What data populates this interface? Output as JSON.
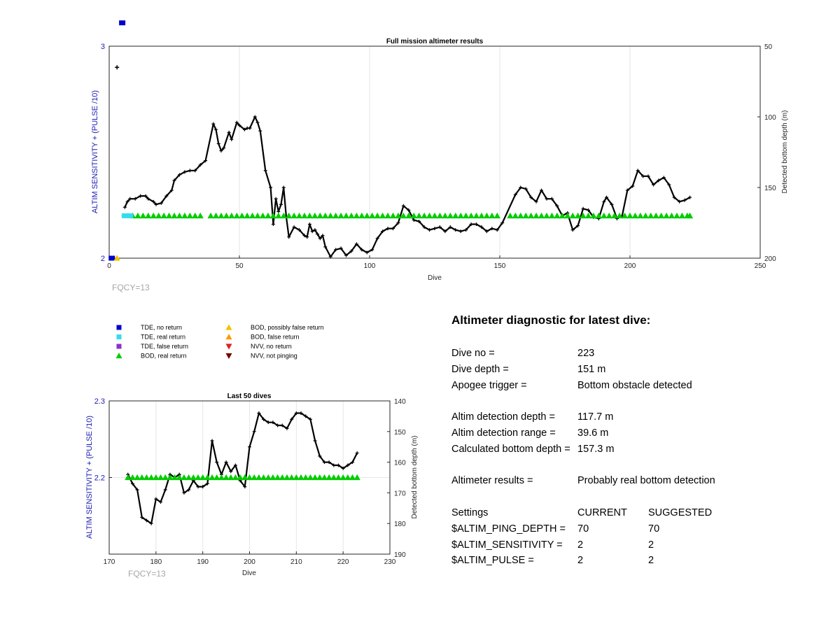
{
  "top_chart": {
    "title": "Full mission altimeter results",
    "xlabel": "Dive",
    "ylabel_left": "ALTIM SENSITIVITY + (PULSE /10)",
    "ylabel_right": "Detected bottom depth (m)",
    "xticks": [
      "0",
      "50",
      "100",
      "150",
      "200",
      "250"
    ],
    "yticks_left": [
      "2",
      "3"
    ],
    "yticks_right": [
      "50",
      "100",
      "150",
      "200"
    ],
    "fqcy": "FQCY=13"
  },
  "bottom_chart": {
    "title": "Last 50 dives",
    "xlabel": "Dive",
    "ylabel_left": "ALTIM SENSITIVITY + (PULSE /10)",
    "ylabel_right": "Detected bottom depth (m)",
    "xticks": [
      "170",
      "180",
      "190",
      "200",
      "210",
      "220",
      "230"
    ],
    "yticks_left": [
      "2.2",
      "2.3"
    ],
    "yticks_right": [
      "140",
      "150",
      "160",
      "170",
      "180",
      "190"
    ],
    "fqcy": "FQCY=13"
  },
  "legend": [
    {
      "label": "TDE, no return",
      "symbol": "square",
      "color": "#0000cc"
    },
    {
      "label": "TDE, real return",
      "symbol": "square",
      "color": "#33ddee"
    },
    {
      "label": "TDE, false return",
      "symbol": "square",
      "color": "#8833cc"
    },
    {
      "label": "BOD, real return",
      "symbol": "triangle-up",
      "color": "#00cc00"
    },
    {
      "label": "BOD, possibly false return",
      "symbol": "triangle-up",
      "color": "#f2c200"
    },
    {
      "label": "BOD, false return",
      "symbol": "triangle-up",
      "color": "#ff9900"
    },
    {
      "label": "NVV, no return",
      "symbol": "triangle-down",
      "color": "#dd2222"
    },
    {
      "label": "NVV, not pinging",
      "symbol": "triangle-down",
      "color": "#770000"
    }
  ],
  "diagnostic": {
    "heading": "Altimeter diagnostic for latest dive:",
    "dive_no_label": "Dive no =",
    "dive_no": "223",
    "dive_depth_label": "Dive depth =",
    "dive_depth": "151 m",
    "apogee_label": "Apogee trigger =",
    "apogee": "Bottom obstacle detected",
    "det_depth_label": "Altim detection depth =",
    "det_depth": "117.7 m",
    "det_range_label": "Altim detection range =",
    "det_range": "39.6 m",
    "calc_depth_label": "Calculated bottom depth =",
    "calc_depth": "157.3 m",
    "results_label": "Altimeter results =",
    "results": "Probably real bottom detection",
    "settings_label": "Settings",
    "current_label": "CURRENT",
    "suggested_label": "SUGGESTED",
    "ping_depth_label": "$ALTIM_PING_DEPTH =",
    "ping_depth_current": "70",
    "ping_depth_suggested": "70",
    "sensitivity_label": "$ALTIM_SENSITIVITY =",
    "sensitivity_current": "2",
    "sensitivity_suggested": "2",
    "pulse_label": "$ALTIM_PULSE =",
    "pulse_current": "2",
    "pulse_suggested": "2"
  },
  "chart_data": [
    {
      "type": "line",
      "title": "Full mission altimeter results",
      "xlabel": "Dive",
      "ylabel": "ALTIM SENSITIVITY + (PULSE /10)",
      "y2label": "Detected bottom depth (m)",
      "xlim": [
        0,
        250
      ],
      "ylim": [
        2,
        3
      ],
      "y2lim": [
        200,
        50
      ],
      "y2_reversed": true,
      "grid": true,
      "series": [
        {
          "kind": "depth-line",
          "axis": "right",
          "color": "#000000",
          "x": [
            3,
            6,
            7,
            8,
            10,
            12,
            14,
            15,
            17,
            18,
            20,
            22,
            24,
            25,
            27,
            29,
            31,
            33,
            35,
            37,
            40,
            41,
            42,
            43,
            44,
            46,
            47,
            49,
            50,
            52,
            53,
            54,
            56,
            57,
            58,
            60,
            62,
            63,
            64,
            65,
            66,
            67,
            68,
            69,
            71,
            73,
            75,
            76,
            77,
            78,
            79,
            80,
            81,
            82,
            83,
            85,
            87,
            89,
            91,
            93,
            95,
            97,
            99,
            101,
            103,
            105,
            107,
            109,
            111,
            113,
            115,
            117,
            119,
            121,
            123,
            125,
            127,
            129,
            131,
            133,
            135,
            137,
            139,
            141,
            143,
            145,
            147,
            149,
            151,
            156,
            158,
            160,
            162,
            164,
            166,
            168,
            170,
            172,
            174,
            176,
            178,
            180,
            182,
            184,
            186,
            188,
            190,
            191,
            193,
            195,
            197,
            199,
            201,
            203,
            205,
            207,
            209,
            211,
            213,
            215,
            217,
            219,
            221,
            223
          ],
          "values": [
            65,
            164,
            160,
            158,
            158,
            156,
            156,
            158,
            160,
            162,
            161,
            156,
            152,
            145,
            141,
            139,
            138,
            138,
            134,
            131,
            105,
            109,
            119,
            124,
            122,
            111,
            116,
            104,
            106,
            109,
            108,
            108,
            100,
            104,
            110,
            138,
            150,
            176,
            158,
            167,
            162,
            150,
            171,
            185,
            178,
            180,
            184,
            185,
            176,
            181,
            180,
            183,
            186,
            184,
            192,
            199,
            194,
            193,
            198,
            195,
            190,
            194,
            196,
            194,
            186,
            181,
            179,
            179,
            175,
            163,
            166,
            173,
            174,
            178,
            180,
            179,
            178,
            181,
            178,
            180,
            181,
            180,
            176,
            176,
            178,
            181,
            179,
            180,
            175,
            155,
            150,
            151,
            157,
            160,
            152,
            158,
            158,
            163,
            170,
            168,
            180,
            177,
            165,
            166,
            171,
            172,
            160,
            157,
            162,
            172,
            170,
            152,
            149,
            138,
            142,
            142,
            148,
            145,
            143,
            148,
            157,
            160,
            159,
            157
          ],
          "markers": "plus"
        },
        {
          "kind": "bod-real-return",
          "axis": "left",
          "color": "#00cc00",
          "marker": "triangle-up",
          "y": 2.2,
          "x": [
            9,
            11,
            13,
            15,
            17,
            19,
            21,
            23,
            25,
            27,
            29,
            31,
            33,
            35,
            39,
            41,
            43,
            45,
            47,
            49,
            51,
            53,
            55,
            57,
            59,
            61,
            63,
            65,
            67,
            69,
            71,
            73,
            75,
            77,
            79,
            81,
            83,
            85,
            87,
            89,
            91,
            93,
            95,
            97,
            99,
            101,
            103,
            105,
            107,
            109,
            111,
            113,
            115,
            117,
            119,
            121,
            123,
            125,
            127,
            129,
            131,
            133,
            135,
            137,
            139,
            141,
            143,
            145,
            147,
            149,
            154,
            156,
            158,
            160,
            162,
            164,
            166,
            168,
            170,
            172,
            174,
            176,
            178,
            180,
            182,
            184,
            186,
            188,
            190,
            192,
            194,
            196,
            198,
            200,
            202,
            204,
            206,
            208,
            210,
            212,
            214,
            216,
            218,
            220,
            222,
            223
          ]
        },
        {
          "kind": "tde-real-return",
          "axis": "left",
          "color": "#33ddee",
          "marker": "square",
          "y": 2.2,
          "x": [
            6,
            8
          ]
        },
        {
          "kind": "tde-no-return",
          "axis": "left",
          "color": "#0000cc",
          "marker": "square",
          "y": 2.0,
          "x": [
            1
          ]
        },
        {
          "kind": "tde-no-return",
          "axis": "left",
          "color": "#0000cc",
          "marker": "square",
          "y": 3.11,
          "x": [
            5
          ]
        },
        {
          "kind": "bod-possibly-false-return",
          "axis": "left",
          "color": "#f2c200",
          "marker": "triangle-up",
          "y": 2.0,
          "x": [
            3
          ]
        }
      ]
    },
    {
      "type": "line",
      "title": "Last 50 dives",
      "xlabel": "Dive",
      "ylabel": "ALTIM SENSITIVITY + (PULSE /10)",
      "y2label": "Detected bottom depth (m)",
      "xlim": [
        170,
        230
      ],
      "ylim": [
        2.1,
        2.3
      ],
      "y2lim": [
        190,
        140
      ],
      "y2_reversed": true,
      "grid": true,
      "series": [
        {
          "kind": "depth-line",
          "axis": "right",
          "color": "#000000",
          "x": [
            174,
            175,
            176,
            177,
            178,
            179,
            180,
            181,
            182,
            183,
            184,
            185,
            186,
            187,
            188,
            189,
            190,
            191,
            192,
            193,
            194,
            195,
            196,
            197,
            198,
            199,
            200,
            201,
            202,
            203,
            204,
            205,
            206,
            207,
            208,
            209,
            210,
            211,
            212,
            213,
            214,
            215,
            216,
            217,
            218,
            219,
            220,
            221,
            222,
            223
          ],
          "values": [
            164,
            167,
            169,
            178,
            179,
            180,
            172,
            173,
            169,
            164,
            165,
            164,
            170,
            169,
            166,
            168,
            168,
            167,
            153,
            160,
            164,
            160,
            163,
            161,
            166,
            168,
            155,
            150,
            144,
            146,
            147,
            147,
            148,
            148,
            149,
            146,
            144,
            144,
            145,
            146,
            153,
            158,
            160,
            160,
            161,
            161,
            162,
            161,
            160,
            157
          ],
          "markers": "plus"
        },
        {
          "kind": "bod-real-return",
          "axis": "left",
          "color": "#00cc00",
          "marker": "triangle-up",
          "y": 2.2,
          "x": [
            174,
            175,
            176,
            177,
            178,
            179,
            180,
            181,
            182,
            183,
            184,
            185,
            186,
            187,
            188,
            189,
            190,
            191,
            192,
            193,
            194,
            195,
            196,
            197,
            198,
            199,
            200,
            201,
            202,
            203,
            204,
            205,
            206,
            207,
            208,
            209,
            210,
            211,
            212,
            213,
            214,
            215,
            216,
            217,
            218,
            219,
            220,
            221,
            222,
            223
          ]
        }
      ]
    }
  ]
}
